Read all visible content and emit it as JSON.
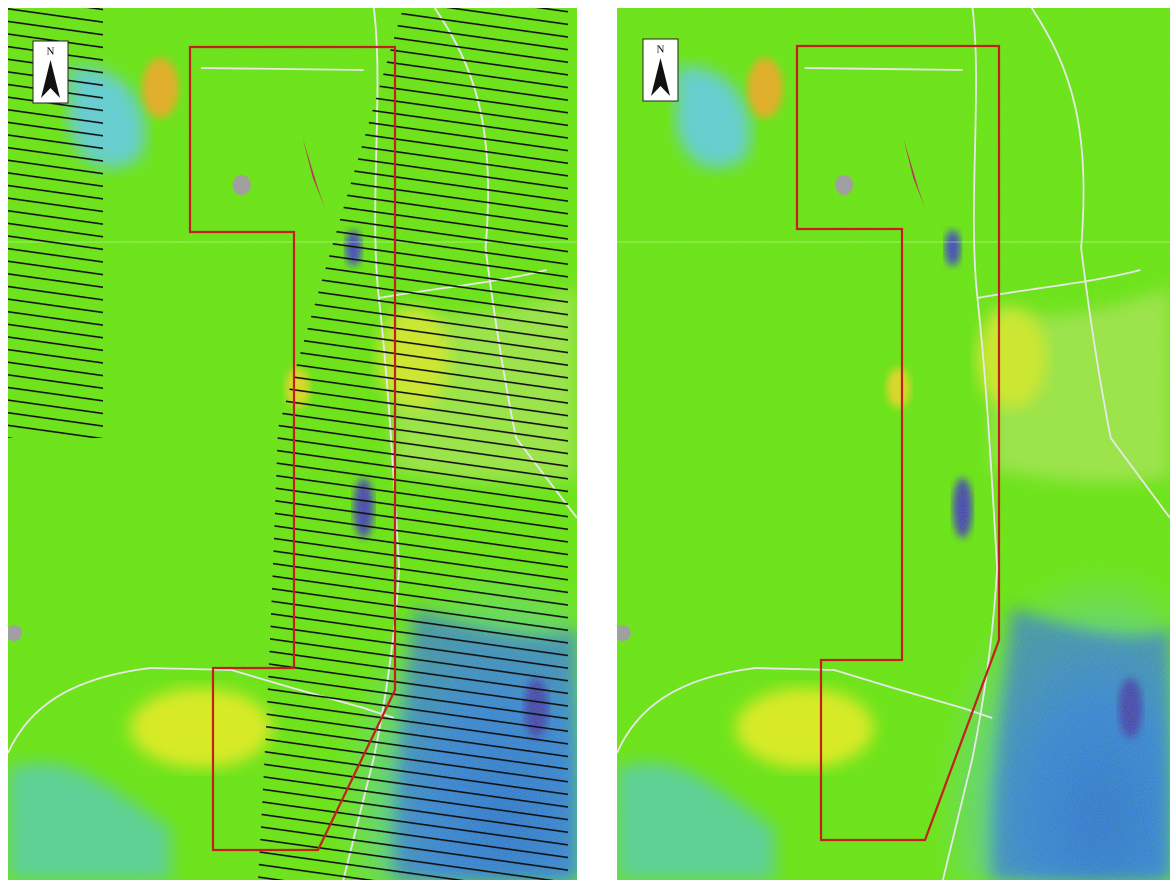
{
  "maps": [
    {
      "north_label": "N"
    },
    {
      "north_label": "N"
    }
  ]
}
